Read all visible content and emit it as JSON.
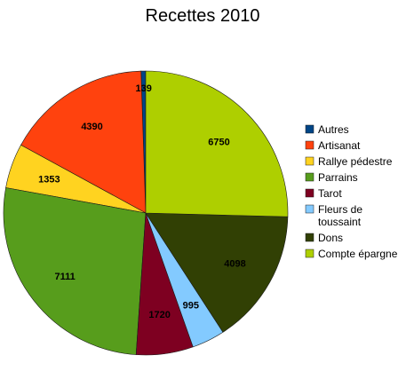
{
  "chart_data": {
    "type": "pie",
    "title": "Recettes 2010",
    "start_angle_deg": 0,
    "direction": "counterclockwise",
    "legend_position": "right",
    "slices": [
      {
        "label": "Autres",
        "value": 139,
        "color": "#004586"
      },
      {
        "label": "Artisanat",
        "value": 4390,
        "color": "#ff420e"
      },
      {
        "label": "Rallye pédestre",
        "value": 1353,
        "color": "#ffd320"
      },
      {
        "label": "Parrains",
        "value": 7111,
        "color": "#579d1c"
      },
      {
        "label": "Tarot",
        "value": 1720,
        "color": "#7e0021"
      },
      {
        "label": "Fleurs de toussaint",
        "value": 995,
        "color": "#83caff"
      },
      {
        "label": "Dons",
        "value": 4098,
        "color": "#314004"
      },
      {
        "label": "Compte épargne",
        "value": 6750,
        "color": "#aecf00"
      }
    ],
    "legend_lines": [
      [
        "Autres"
      ],
      [
        "Artisanat"
      ],
      [
        "Rallye pédestre"
      ],
      [
        "Parrains"
      ],
      [
        "Tarot"
      ],
      [
        "Fleurs de",
        "toussaint"
      ],
      [
        "Dons"
      ],
      [
        "Compte épargne"
      ]
    ]
  }
}
